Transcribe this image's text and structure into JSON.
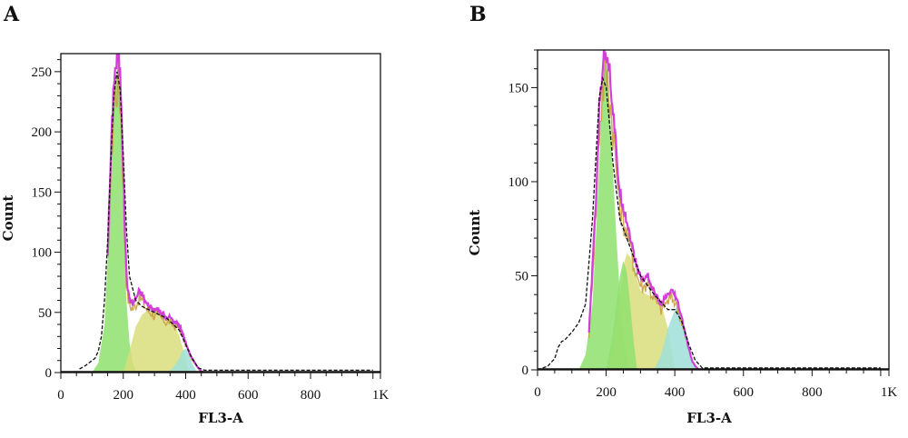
{
  "chart_data": [
    {
      "type": "area",
      "panel_label": "A",
      "xlabel": "FL3-A",
      "ylabel": "Count",
      "xlim": [
        0,
        1024
      ],
      "ylim": [
        0,
        265
      ],
      "x_ticks": [
        0,
        200,
        400,
        600,
        800,
        1024
      ],
      "x_tick_labels": [
        "0",
        "200",
        "400",
        "600",
        "800",
        "1K"
      ],
      "y_ticks": [
        0,
        50,
        100,
        150,
        200,
        250
      ],
      "y_tick_labels": [
        "0",
        "50",
        "100",
        "150",
        "200",
        "250"
      ],
      "grid": false,
      "series": [
        {
          "role": "g1",
          "color": "#8fe06e",
          "x": [
            100,
            120,
            140,
            150,
            160,
            170,
            175,
            180,
            185,
            190,
            195,
            200,
            205,
            210,
            220,
            230,
            240,
            250
          ],
          "y": [
            0,
            8,
            40,
            95,
            170,
            230,
            245,
            248,
            240,
            215,
            180,
            135,
            95,
            60,
            25,
            8,
            2,
            0
          ]
        },
        {
          "role": "s",
          "color": "#d9dd7a",
          "x": [
            200,
            220,
            240,
            260,
            280,
            300,
            320,
            340,
            360,
            380,
            400,
            410
          ],
          "y": [
            0,
            18,
            38,
            48,
            52,
            52,
            50,
            46,
            42,
            30,
            12,
            0
          ]
        },
        {
          "role": "g2",
          "color": "#9fe0d8",
          "x": [
            340,
            360,
            380,
            390,
            400,
            410,
            420,
            430,
            440
          ],
          "y": [
            0,
            4,
            12,
            18,
            20,
            16,
            8,
            3,
            0
          ]
        },
        {
          "role": "envelope",
          "color": "#d040d8",
          "x": [
            150,
            160,
            170,
            180,
            185,
            190,
            195,
            200,
            205,
            210,
            215,
            220,
            230,
            240,
            250,
            260,
            270,
            280,
            290,
            300,
            310,
            320,
            330,
            340,
            350,
            360,
            370,
            380,
            390,
            400,
            410,
            420,
            430,
            440,
            450,
            460
          ],
          "y": [
            100,
            180,
            248,
            262,
            265,
            250,
            220,
            170,
            120,
            85,
            68,
            62,
            58,
            62,
            68,
            66,
            60,
            56,
            55,
            52,
            54,
            50,
            48,
            45,
            47,
            43,
            42,
            40,
            33,
            25,
            18,
            12,
            8,
            4,
            1,
            0
          ]
        }
      ],
      "raw_histogram": {
        "color": "#111111",
        "x": [
          60,
          80,
          90,
          100,
          110,
          120,
          130,
          140,
          150,
          160,
          170,
          180,
          190,
          200,
          210,
          220,
          240,
          260,
          300,
          340,
          380,
          420,
          440,
          460,
          1000
        ],
        "y": [
          3,
          6,
          8,
          10,
          12,
          18,
          30,
          60,
          110,
          175,
          230,
          250,
          235,
          180,
          120,
          80,
          60,
          55,
          50,
          45,
          35,
          12,
          4,
          2,
          2
        ]
      }
    },
    {
      "type": "area",
      "panel_label": "B",
      "xlabel": "FL3-A",
      "ylabel": "Count",
      "xlim": [
        0,
        1024
      ],
      "ylim": [
        0,
        170
      ],
      "x_ticks": [
        0,
        200,
        400,
        600,
        800,
        1024
      ],
      "x_tick_labels": [
        "0",
        "200",
        "400",
        "600",
        "800",
        "1K"
      ],
      "y_ticks": [
        0,
        50,
        100,
        150
      ],
      "y_tick_labels": [
        "0",
        "50",
        "100",
        "150"
      ],
      "grid": false,
      "series": [
        {
          "role": "g1",
          "color": "#8fe06e",
          "x": [
            120,
            140,
            160,
            170,
            180,
            190,
            195,
            200,
            205,
            210,
            220,
            230,
            240,
            250,
            260,
            270
          ],
          "y": [
            0,
            8,
            35,
            70,
            110,
            150,
            160,
            163,
            155,
            140,
            105,
            70,
            40,
            18,
            6,
            0
          ]
        },
        {
          "role": "s",
          "color": "#d9dd7a",
          "x": [
            210,
            230,
            250,
            260,
            270,
            280,
            290,
            300,
            320,
            340,
            360,
            380,
            400
          ],
          "y": [
            0,
            25,
            55,
            62,
            60,
            55,
            48,
            42,
            40,
            38,
            35,
            22,
            0
          ]
        },
        {
          "role": "s2",
          "color": "#8fe06e",
          "x": [
            200,
            220,
            240,
            250,
            260,
            270,
            280,
            290
          ],
          "y": [
            0,
            20,
            50,
            58,
            52,
            35,
            15,
            0
          ]
        },
        {
          "role": "g2",
          "color": "#9fe0d8",
          "x": [
            340,
            360,
            380,
            400,
            410,
            420,
            430,
            440,
            450,
            460,
            470
          ],
          "y": [
            0,
            8,
            22,
            32,
            34,
            30,
            22,
            12,
            5,
            1,
            0
          ]
        },
        {
          "role": "envelope",
          "color": "#d040d8",
          "x": [
            150,
            170,
            180,
            190,
            195,
            200,
            205,
            210,
            220,
            230,
            240,
            250,
            260,
            270,
            280,
            290,
            300,
            310,
            320,
            330,
            340,
            350,
            360,
            370,
            380,
            390,
            400,
            410,
            420,
            430,
            440,
            450,
            460,
            470
          ],
          "y": [
            20,
            90,
            140,
            165,
            170,
            172,
            168,
            160,
            140,
            115,
            95,
            88,
            80,
            72,
            62,
            55,
            50,
            48,
            52,
            45,
            42,
            38,
            35,
            38,
            40,
            42,
            40,
            35,
            28,
            20,
            12,
            5,
            2,
            0
          ]
        }
      ],
      "raw_histogram": {
        "color": "#111111",
        "x": [
          0,
          30,
          50,
          60,
          70,
          80,
          90,
          100,
          120,
          140,
          160,
          180,
          190,
          200,
          210,
          220,
          240,
          260,
          300,
          340,
          380,
          400,
          420,
          440,
          460,
          480,
          1000
        ],
        "y": [
          0,
          2,
          6,
          12,
          15,
          16,
          18,
          20,
          25,
          35,
          80,
          145,
          155,
          150,
          130,
          110,
          80,
          70,
          50,
          40,
          32,
          32,
          26,
          14,
          5,
          1,
          1
        ]
      }
    }
  ]
}
